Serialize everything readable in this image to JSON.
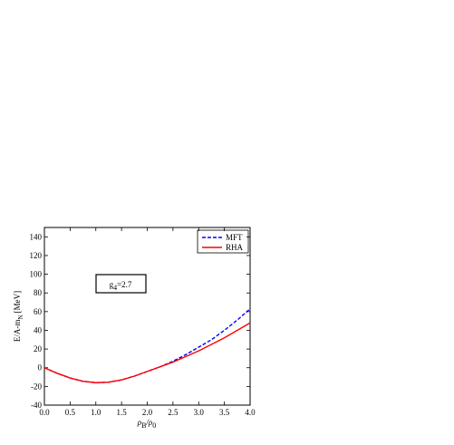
{
  "chart_data": {
    "type": "line",
    "ylabel": {
      "main": "E/A-m",
      "sub": "N",
      "rest": " [MeV]"
    },
    "xlabel": {
      "a": "ρ",
      "a_sub": "B",
      "b": "/ρ",
      "b_sub": "0"
    },
    "annotation": {
      "main": "g",
      "sub": "4",
      "rest": "=2.7"
    },
    "x": [
      0,
      0.25,
      0.5,
      0.75,
      1,
      1.25,
      1.5,
      1.75,
      2,
      2.25,
      2.5,
      2.75,
      3,
      3.25,
      3.5,
      3.75,
      4
    ],
    "series": [
      {
        "name": "MFT",
        "color": "#0000ff",
        "dashed": true,
        "values": [
          0,
          -6,
          -11,
          -14.5,
          -16,
          -15.5,
          -13,
          -9,
          -4,
          1,
          7,
          14,
          22,
          30,
          40,
          51,
          63
        ]
      },
      {
        "name": "RHA",
        "color": "#ff0000",
        "dashed": false,
        "values": [
          0,
          -6,
          -11,
          -14.5,
          -16,
          -15.5,
          -13,
          -9,
          -4,
          1,
          6,
          12,
          18,
          25,
          32,
          40,
          48
        ]
      }
    ],
    "xlim": [
      0,
      4
    ],
    "xticks": [
      {
        "value": 0,
        "label": "0.0"
      },
      0.5,
      {
        "value": 1,
        "label": "1.0"
      },
      1.5,
      {
        "value": 2,
        "label": "2.0"
      },
      2.5,
      {
        "value": 3,
        "label": "3.0"
      },
      3.5,
      {
        "value": 4,
        "label": "4.0"
      }
    ],
    "ylim": [
      -40,
      150
    ],
    "yticks": [
      -40,
      -20,
      0,
      20,
      40,
      60,
      80,
      100,
      120,
      140
    ],
    "legend": "upper right"
  }
}
